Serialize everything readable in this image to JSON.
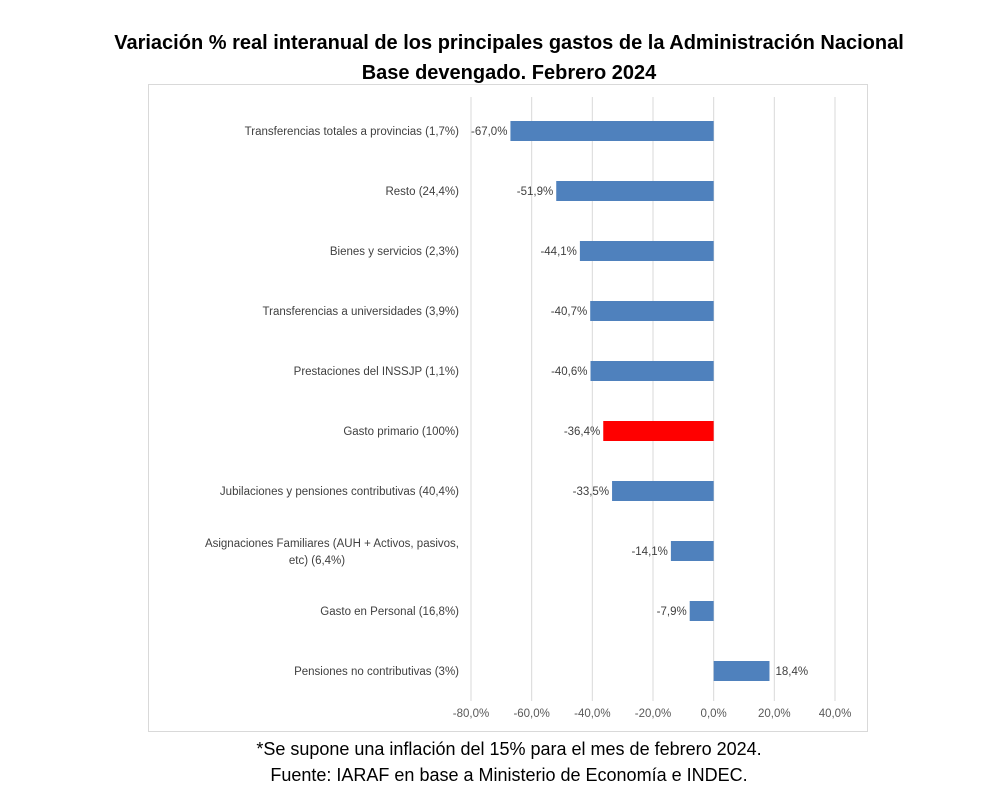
{
  "chart_data": {
    "type": "bar",
    "orientation": "horizontal",
    "title": "Variación % real interanual de los principales gastos de la Administración Nacional",
    "subtitle": "Base devengado. Febrero 2024",
    "categories": [
      "Transferencias totales a provincias (1,7%)",
      "Resto (24,4%)",
      "Bienes y servicios (2,3%)",
      "Transferencias a universidades (3,9%)",
      "Prestaciones del INSSJP (1,1%)",
      "Gasto primario (100%)",
      "Jubilaciones y pensiones contributivas (40,4%)",
      "Asignaciones Familiares (AUH + Activos, pasivos, etc) (6,4%)",
      "Gasto en Personal (16,8%)",
      "Pensiones no contributivas (3%)"
    ],
    "values": [
      -67.0,
      -51.9,
      -44.1,
      -40.7,
      -40.6,
      -36.4,
      -33.5,
      -14.1,
      -7.9,
      18.4
    ],
    "value_labels": [
      "-67,0%",
      "-51,9%",
      "-44,1%",
      "-40,7%",
      "-40,6%",
      "-36,4%",
      "-33,5%",
      "-14,1%",
      "-7,9%",
      "18,4%"
    ],
    "bar_colors": [
      "#4f81bd",
      "#4f81bd",
      "#4f81bd",
      "#4f81bd",
      "#4f81bd",
      "#ff0000",
      "#4f81bd",
      "#4f81bd",
      "#4f81bd",
      "#4f81bd"
    ],
    "xlim": [
      -80,
      40
    ],
    "xticks": [
      -80,
      -60,
      -40,
      -20,
      0,
      20,
      40
    ],
    "xtick_labels": [
      "-80,0%",
      "-60,0%",
      "-40,0%",
      "-20,0%",
      "0,0%",
      "20,0%",
      "40,0%"
    ],
    "grid": true,
    "xlabel": "",
    "ylabel": ""
  },
  "footer": {
    "note": "*Se supone una inflación del 15% para el mes de febrero 2024.",
    "source": "Fuente: IARAF en base a Ministerio de Economía e INDEC."
  }
}
